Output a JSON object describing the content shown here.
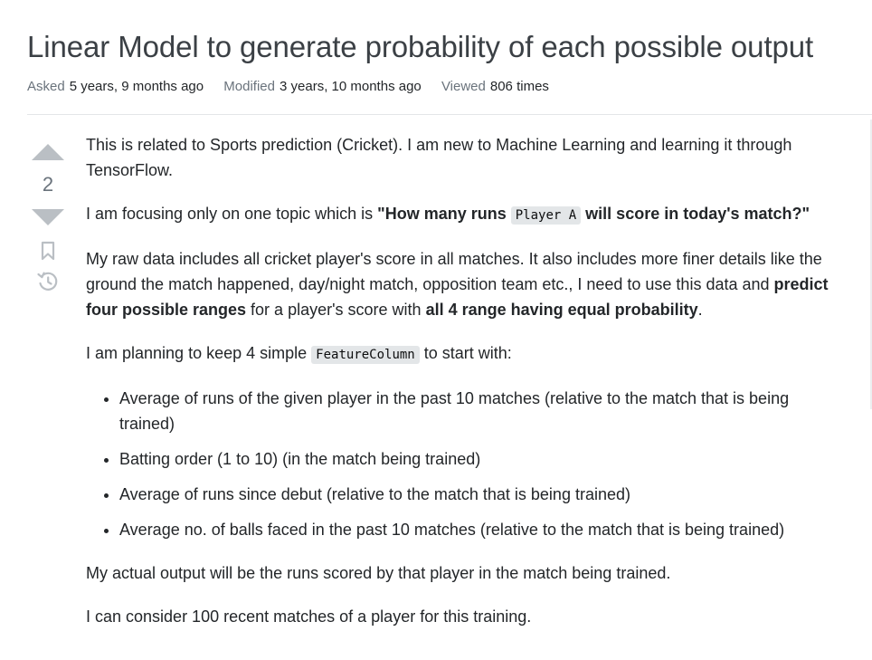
{
  "question": {
    "title": "Linear Model to generate probability of each possible output",
    "meta": {
      "asked_label": "Asked",
      "asked_value": "5 years, 9 months ago",
      "modified_label": "Modified",
      "modified_value": "3 years, 10 months ago",
      "viewed_label": "Viewed",
      "viewed_value": "806 times"
    },
    "votes": {
      "count": "2",
      "upvote_icon": "triangle-up-icon",
      "downvote_icon": "triangle-down-icon",
      "bookmark_icon": "bookmark-icon",
      "history_icon": "history-icon"
    },
    "body": {
      "p1": "This is related to Sports prediction (Cricket). I am new to Machine Learning and learning it through TensorFlow.",
      "p2": {
        "pre": "I am focusing only on one topic which is ",
        "bold1": "\"How many runs ",
        "code": "Player A",
        "bold2": " will score in today's match?\""
      },
      "p3": {
        "pre": "My raw data includes all cricket player's score in all matches. It also includes more finer details like the ground the match happened, day/night match, opposition team etc., I need to use this data and ",
        "bold1": "predict four possible ranges",
        "mid": " for a player's score with ",
        "bold2": "all 4 range having equal probability",
        "post": "."
      },
      "p4": {
        "pre": "I am planning to keep 4 simple ",
        "code": "FeatureColumn",
        "post": " to start with:"
      },
      "features": [
        "Average of runs of the given player in the past 10 matches (relative to the match that is being trained)",
        "Batting order (1 to 10) (in the match being trained)",
        "Average of runs since debut (relative to the match that is being trained)",
        "Average no. of balls faced in the past 10 matches (relative to the match that is being trained)"
      ],
      "p5": "My actual output will be the runs scored by that player in the match being trained.",
      "p6": "I can consider 100 recent matches of a player for this training."
    }
  },
  "colors": {
    "vote_arrow": "#babfc4",
    "muted_text": "#6a737c",
    "code_bg": "#e3e6e8",
    "title_text": "#3b4045"
  }
}
